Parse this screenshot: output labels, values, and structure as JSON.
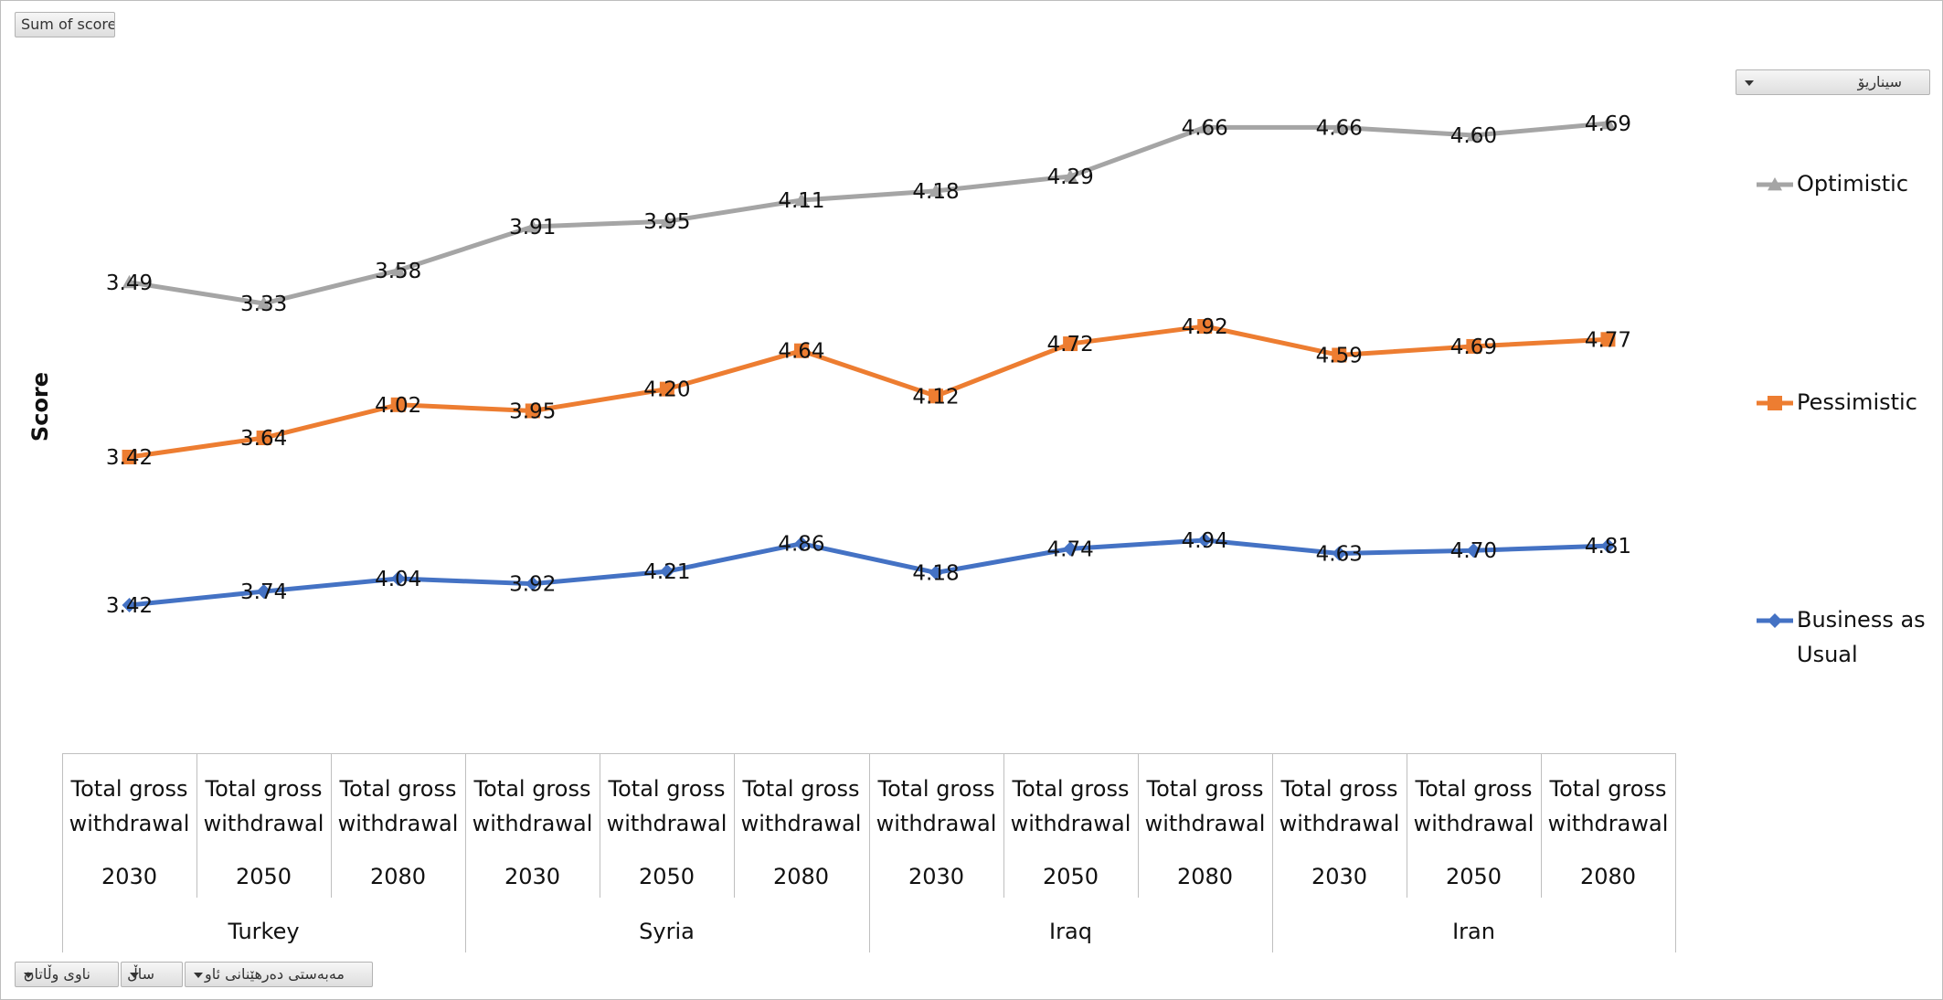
{
  "buttons": {
    "data_field": "Sum of score",
    "scenario_filter": "سیناریۆ",
    "country_filter": "ناوی وڵاتان",
    "year_filter": "ساڵ",
    "source_filter": "مەبەستی دەرهێنانی ئاو"
  },
  "chart_data": {
    "type": "line",
    "ylabel": "Score",
    "categories": [
      {
        "country": "Turkey",
        "measure": "Total gross withdrawal",
        "year": "2030"
      },
      {
        "country": "Turkey",
        "measure": "Total gross withdrawal",
        "year": "2050"
      },
      {
        "country": "Turkey",
        "measure": "Total gross withdrawal",
        "year": "2080"
      },
      {
        "country": "Syria",
        "measure": "Total gross withdrawal",
        "year": "2030"
      },
      {
        "country": "Syria",
        "measure": "Total gross withdrawal",
        "year": "2050"
      },
      {
        "country": "Syria",
        "measure": "Total gross withdrawal",
        "year": "2080"
      },
      {
        "country": "Iraq",
        "measure": "Total gross withdrawal",
        "year": "2030"
      },
      {
        "country": "Iraq",
        "measure": "Total gross withdrawal",
        "year": "2050"
      },
      {
        "country": "Iraq",
        "measure": "Total gross withdrawal",
        "year": "2080"
      },
      {
        "country": "Iran",
        "measure": "Total gross withdrawal",
        "year": "2030"
      },
      {
        "country": "Iran",
        "measure": "Total gross withdrawal",
        "year": "2050"
      },
      {
        "country": "Iran",
        "measure": "Total gross withdrawal",
        "year": "2080"
      }
    ],
    "countries": [
      "Turkey",
      "Syria",
      "Iraq",
      "Iran"
    ],
    "series": [
      {
        "name": "Optimistic",
        "color": "#a5a5a5",
        "marker": "triangle",
        "values": [
          3.49,
          3.33,
          3.58,
          3.91,
          3.95,
          4.11,
          4.18,
          4.29,
          4.66,
          4.66,
          4.6,
          4.69
        ],
        "labels": [
          "3.49",
          "3.33",
          "3.58",
          "3.91",
          "3.95",
          "4.11",
          "4.18",
          "4.29",
          "4.66",
          "4.66",
          "4.60",
          "4.69"
        ]
      },
      {
        "name": "Pessimistic",
        "color": "#ed7d31",
        "marker": "square",
        "values": [
          3.42,
          3.64,
          4.02,
          3.95,
          4.2,
          4.64,
          4.12,
          4.72,
          4.92,
          4.59,
          4.69,
          4.77
        ],
        "labels": [
          "3.42",
          "3.64",
          "4.02",
          "3.95",
          "4.20",
          "4.64",
          "4.12",
          "4.72",
          "4.92",
          "4.59",
          "4.69",
          "4.77"
        ]
      },
      {
        "name": "Business as Usual",
        "color": "#4472c4",
        "marker": "diamond",
        "values": [
          3.42,
          3.74,
          4.04,
          3.92,
          4.21,
          4.86,
          4.18,
          4.74,
          4.94,
          4.63,
          4.7,
          4.81
        ],
        "labels": [
          "3.42",
          "3.74",
          "4.04",
          "3.92",
          "4.21",
          "4.86",
          "4.18",
          "4.74",
          "4.94",
          "4.63",
          "4.70",
          "4.81"
        ]
      }
    ],
    "legend_position": "right",
    "grid": false
  }
}
